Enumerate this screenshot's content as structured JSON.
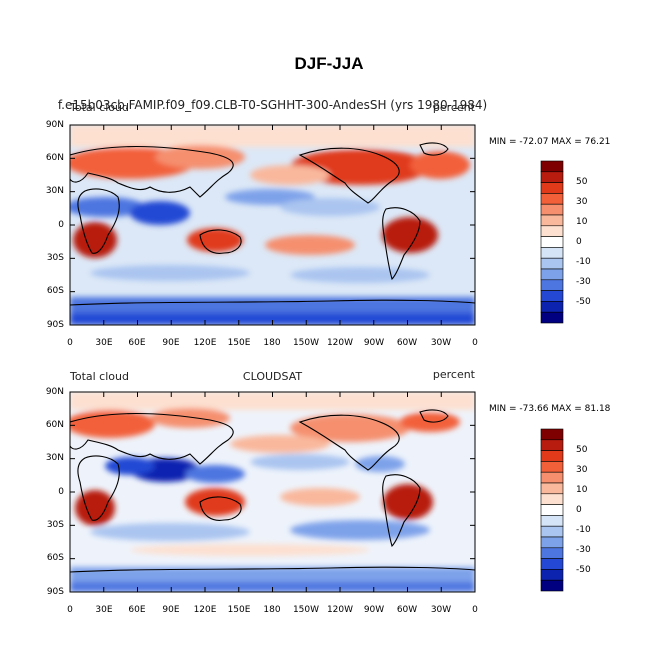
{
  "page_title": "DJF-JJA",
  "panels": [
    {
      "left_string": "Total cloud",
      "center_string": "f.e15b03cb.FAMIP.f09_f09.CLB-T0-SGHHT-300-AndesSH (yrs 1980-1984)",
      "right_string": "percent",
      "min_max": "MIN = -72.07  MAX =  76.21"
    },
    {
      "left_string": "Total cloud",
      "center_string": "CLOUDSAT",
      "right_string": "percent",
      "min_max": "MIN = -73.66  MAX =  81.18"
    }
  ],
  "lat_ticks": [
    "90N",
    "60N",
    "30N",
    "0",
    "30S",
    "60S",
    "90S"
  ],
  "lon_ticks": [
    "0",
    "30E",
    "60E",
    "90E",
    "120E",
    "150E",
    "180",
    "150W",
    "120W",
    "90W",
    "60W",
    "30W",
    "0"
  ],
  "colorbar": {
    "labels": [
      "50",
      "30",
      "10",
      "0",
      "-10",
      "-30",
      "-50"
    ],
    "colors": [
      "#7f0000",
      "#b81c0f",
      "#e03a1a",
      "#f2603a",
      "#f58f6e",
      "#f9b89c",
      "#fde0d0",
      "#ffffff",
      "#d6e4f7",
      "#aac5f0",
      "#7ea2ea",
      "#4d76e0",
      "#2448d4",
      "#0c23b0",
      "#000080"
    ]
  }
}
